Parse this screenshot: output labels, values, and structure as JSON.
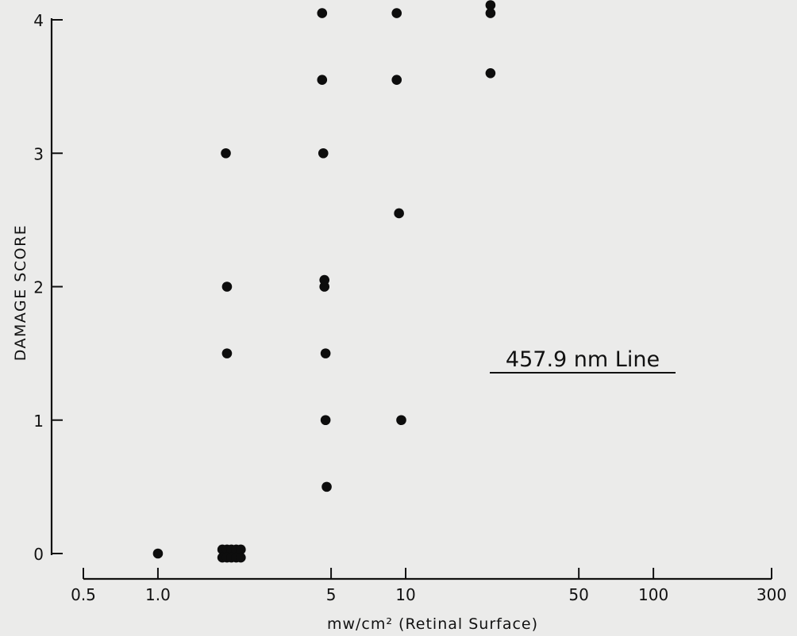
{
  "chart_data": {
    "type": "scatter",
    "title": "",
    "annotation": "457.9 nm Line",
    "xlabel": "mw/cm² (Retinal Surface)",
    "ylabel": "DAMAGE SCORE",
    "xscale": "log",
    "xlim": [
      0.5,
      300
    ],
    "ylim": [
      0,
      4
    ],
    "xticks": [
      {
        "value": 0.5,
        "label": "0.5"
      },
      {
        "value": 1.0,
        "label": "1.0"
      },
      {
        "value": 5,
        "label": "5"
      },
      {
        "value": 10,
        "label": "10"
      },
      {
        "value": 50,
        "label": "50"
      },
      {
        "value": 100,
        "label": "100"
      },
      {
        "value": 300,
        "label": "300"
      }
    ],
    "yticks": [
      {
        "value": 0,
        "label": "0"
      },
      {
        "value": 1,
        "label": "1"
      },
      {
        "value": 2,
        "label": "2"
      },
      {
        "value": 3,
        "label": "3"
      },
      {
        "value": 4,
        "label": "4"
      }
    ],
    "grid": false,
    "points": [
      {
        "x": 1.0,
        "y": 0
      },
      {
        "x": 1.82,
        "y": 0.03
      },
      {
        "x": 1.9,
        "y": 0.03
      },
      {
        "x": 1.98,
        "y": 0.03
      },
      {
        "x": 2.07,
        "y": 0.03
      },
      {
        "x": 2.16,
        "y": 0.03
      },
      {
        "x": 1.82,
        "y": -0.03
      },
      {
        "x": 1.9,
        "y": -0.03
      },
      {
        "x": 1.98,
        "y": -0.03
      },
      {
        "x": 2.07,
        "y": -0.03
      },
      {
        "x": 2.16,
        "y": -0.03
      },
      {
        "x": 1.9,
        "y": 1.5
      },
      {
        "x": 1.9,
        "y": 2.0
      },
      {
        "x": 1.88,
        "y": 3.0
      },
      {
        "x": 4.8,
        "y": 0.5
      },
      {
        "x": 4.75,
        "y": 1.0
      },
      {
        "x": 4.75,
        "y": 1.5
      },
      {
        "x": 4.7,
        "y": 2.0
      },
      {
        "x": 4.7,
        "y": 2.05
      },
      {
        "x": 4.65,
        "y": 3.0
      },
      {
        "x": 4.6,
        "y": 3.55
      },
      {
        "x": 4.6,
        "y": 4.05
      },
      {
        "x": 9.6,
        "y": 1.0
      },
      {
        "x": 9.4,
        "y": 2.55
      },
      {
        "x": 9.2,
        "y": 3.55
      },
      {
        "x": 9.2,
        "y": 4.05
      },
      {
        "x": 22,
        "y": 3.6
      },
      {
        "x": 22,
        "y": 4.05
      },
      {
        "x": 22,
        "y": 4.11
      }
    ]
  }
}
